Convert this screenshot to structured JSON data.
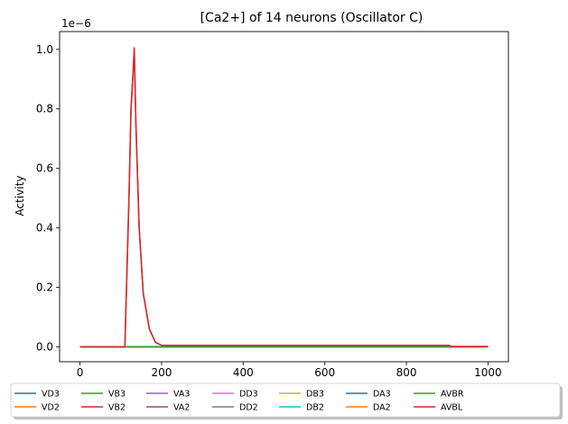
{
  "chart_data": {
    "type": "line",
    "title": "[Ca2+] of 14 neurons (Oscillator C)",
    "xlabel": "",
    "ylabel": "Activity",
    "y_offset_text": "1e−6",
    "y_scale": 1e-06,
    "xlim": [
      -50,
      1050
    ],
    "ylim": [
      -0.05,
      1.06
    ],
    "x_ticks": [
      0,
      200,
      400,
      600,
      800,
      1000
    ],
    "x_tick_labels": [
      "0",
      "200",
      "400",
      "600",
      "800",
      "1000"
    ],
    "y_ticks": [
      0.0,
      0.2,
      0.4,
      0.6,
      0.8,
      1.0
    ],
    "y_tick_labels": [
      "0.0",
      "0.2",
      "0.4",
      "0.6",
      "0.8",
      "1.0"
    ],
    "grid": false,
    "legend_placement": "bottom-center, outside, 7 columns, shadowed",
    "series": [
      {
        "name": "VD3",
        "color": "#1f77b4",
        "x": [
          0,
          1000
        ],
        "y": [
          0,
          0
        ]
      },
      {
        "name": "VD2",
        "color": "#ff7f0e",
        "x": [
          0,
          1000
        ],
        "y": [
          0,
          0
        ]
      },
      {
        "name": "VB3",
        "color": "#2ca02c",
        "x": [
          0,
          1000
        ],
        "y": [
          0,
          0
        ]
      },
      {
        "name": "VB2",
        "color": "#d62728",
        "x": [
          0,
          110,
          120,
          125,
          130,
          133,
          137,
          145,
          155,
          170,
          185,
          200,
          905,
          910,
          1000
        ],
        "y": [
          0,
          0,
          0.5,
          0.8,
          0.92,
          1.005,
          0.75,
          0.4,
          0.18,
          0.06,
          0.015,
          0.005,
          0.005,
          0.001,
          0.001
        ]
      },
      {
        "name": "VA3",
        "color": "#9467bd",
        "x": [
          0,
          1000
        ],
        "y": [
          0,
          0
        ]
      },
      {
        "name": "VA2",
        "color": "#8c564b",
        "x": [
          0,
          1000
        ],
        "y": [
          0,
          0
        ]
      },
      {
        "name": "DD3",
        "color": "#e377c2",
        "x": [
          0,
          1000
        ],
        "y": [
          0,
          0
        ]
      },
      {
        "name": "DD2",
        "color": "#7f7f7f",
        "x": [
          0,
          1000
        ],
        "y": [
          0,
          0
        ]
      },
      {
        "name": "DB3",
        "color": "#bcbd22",
        "x": [
          0,
          1000
        ],
        "y": [
          0,
          0
        ]
      },
      {
        "name": "DB2",
        "color": "#17becf",
        "x": [
          0,
          1000
        ],
        "y": [
          0,
          0
        ]
      },
      {
        "name": "DA3",
        "color": "#1f77b4",
        "x": [
          0,
          1000
        ],
        "y": [
          0,
          0
        ]
      },
      {
        "name": "DA2",
        "color": "#ff7f0e",
        "x": [
          0,
          1000
        ],
        "y": [
          0,
          0
        ]
      },
      {
        "name": "AVBR",
        "color": "#2ca02c",
        "x": [
          0,
          1000
        ],
        "y": [
          0,
          0
        ]
      },
      {
        "name": "AVBL",
        "color": "#d62728",
        "x": [
          0,
          110,
          120,
          125,
          130,
          133,
          137,
          145,
          155,
          170,
          185,
          200,
          905,
          910,
          1000
        ],
        "y": [
          0,
          0,
          0.5,
          0.8,
          0.92,
          1.005,
          0.75,
          0.4,
          0.18,
          0.06,
          0.015,
          0.005,
          0.005,
          0.001,
          0.001
        ]
      }
    ]
  }
}
